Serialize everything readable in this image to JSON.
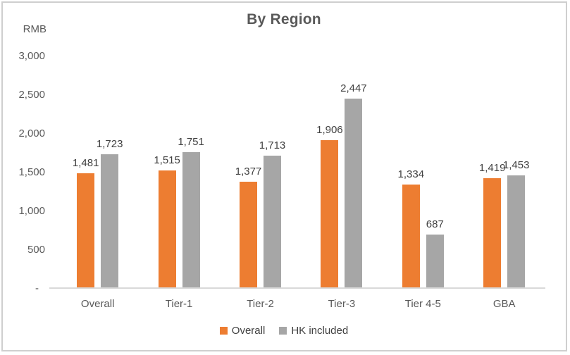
{
  "chart_data": {
    "type": "bar",
    "title": "By Region",
    "y_unit_label": "RMB",
    "xlabel": "",
    "ylabel": "RMB",
    "ylim": [
      0,
      3000
    ],
    "ytick_step": 500,
    "yticks": [
      {
        "value": 3000,
        "label": "3,000"
      },
      {
        "value": 2500,
        "label": "2,500"
      },
      {
        "value": 2000,
        "label": "2,000"
      },
      {
        "value": 1500,
        "label": "1,500"
      },
      {
        "value": 1000,
        "label": "1,000"
      },
      {
        "value": 500,
        "label": "500"
      },
      {
        "value": 0,
        "label": "-"
      }
    ],
    "categories": [
      "Overall",
      "Tier-1",
      "Tier-2",
      "Tier-3",
      "Tier 4-5",
      "GBA"
    ],
    "series": [
      {
        "name": "Overall",
        "color": "#ED7D31",
        "values": [
          1481,
          1515,
          1377,
          1906,
          1334,
          1419
        ],
        "labels": [
          "1,481",
          "1,515",
          "1,377",
          "1,906",
          "1,334",
          "1,419"
        ]
      },
      {
        "name": "HK included",
        "color": "#A6A6A6",
        "values": [
          1723,
          1751,
          1713,
          2447,
          687,
          1453
        ],
        "labels": [
          "1,723",
          "1,751",
          "1,713",
          "2,447",
          "687",
          "1,453"
        ]
      }
    ],
    "legend_position": "bottom",
    "gridlines": false,
    "colors": {
      "axis_line": "#d9d9d9",
      "axis_text": "#595959",
      "data_label_text": "#404040",
      "title_text": "#595959",
      "border": "#cfcfcf"
    }
  }
}
